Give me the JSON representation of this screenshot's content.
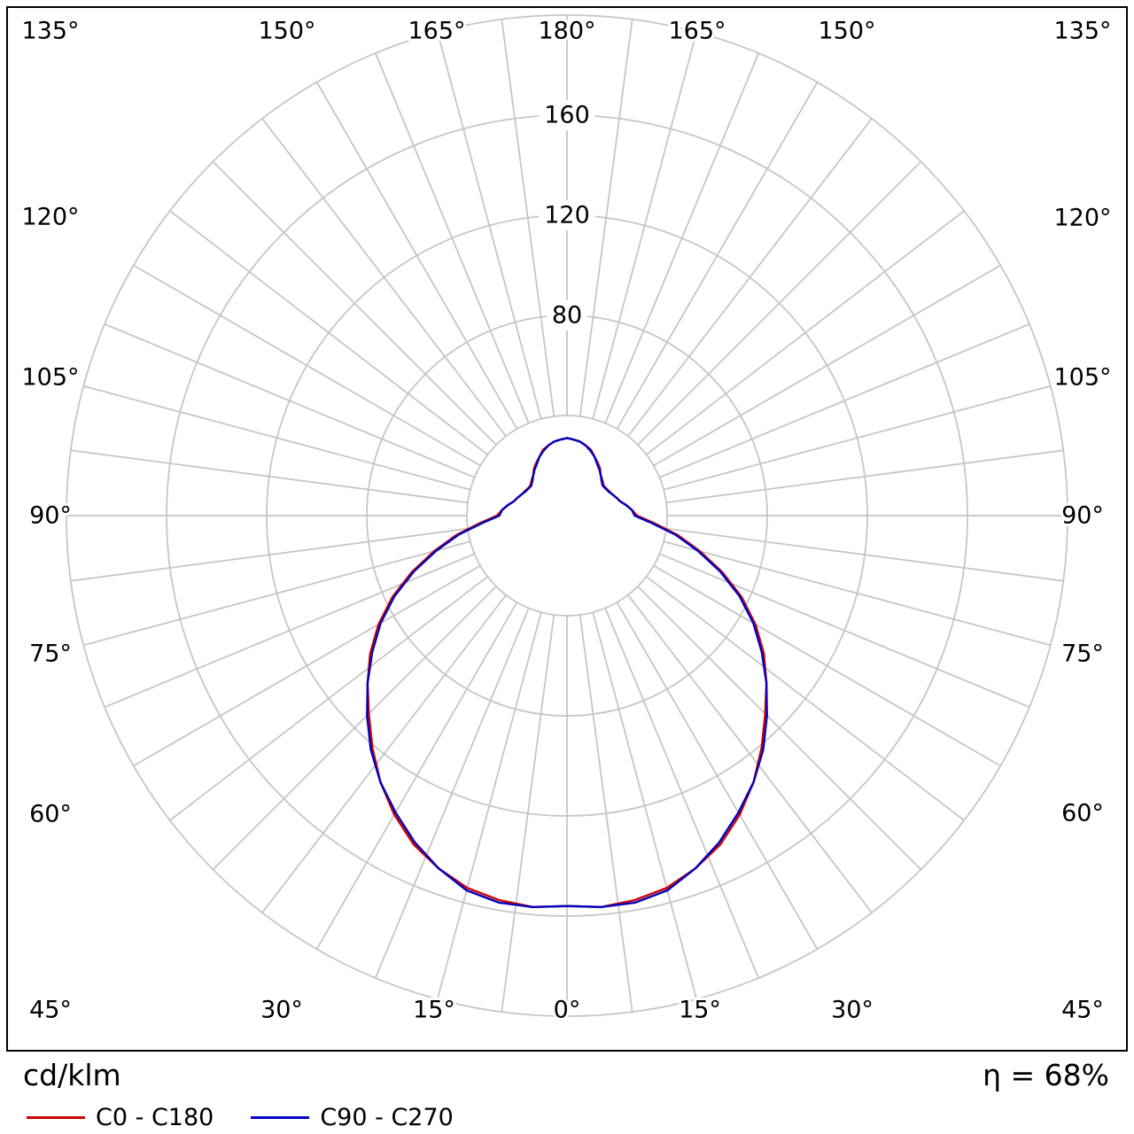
{
  "chart": {
    "unit_label": "cd/klm",
    "efficiency_label": "η = 68%",
    "grid_color": "#c6c6c6",
    "frame_color": "#000000",
    "legend": [
      {
        "label": "C0 - C180",
        "color": "#d00000"
      },
      {
        "label": "C90 - C270",
        "color": "#0000c0"
      }
    ]
  },
  "chart_data": {
    "type": "polar",
    "units": "cd/klm",
    "efficiency": "68%",
    "angle_convention": "gamma 0 deg at bottom (nadir), 180 deg at top (zenith), mirrored left/right",
    "ring_values": [
      40,
      80,
      120,
      160,
      200
    ],
    "ring_labels": [
      80,
      120,
      160
    ],
    "spoke_step_deg": 7.5,
    "angle_label_step_deg": 15,
    "angle_labels": [
      "0°",
      "15°",
      "30°",
      "45°",
      "60°",
      "75°",
      "90°",
      "105°",
      "120°",
      "135°",
      "150°",
      "165°",
      "180°"
    ],
    "gamma_deg": [
      0,
      5,
      10,
      15,
      20,
      25,
      30,
      35,
      40,
      45,
      50,
      55,
      60,
      65,
      70,
      75,
      80,
      85,
      90,
      95,
      100,
      105,
      110,
      115,
      120,
      125,
      130,
      135,
      140,
      145,
      150,
      155,
      160,
      165,
      170,
      175,
      180
    ],
    "series": [
      {
        "name": "C0 - C180",
        "color": "#d00000",
        "values": [
          156,
          157,
          156,
          154,
          150,
          145,
          138,
          130,
          121,
          112,
          104,
          96,
          87,
          77,
          66,
          55,
          45,
          35,
          28,
          26,
          24,
          22,
          21,
          20,
          19.5,
          19,
          19,
          20,
          21,
          23,
          24.5,
          26,
          28,
          29,
          30,
          30.5,
          31
        ]
      },
      {
        "name": "C90 - C270",
        "color": "#0000c0",
        "values": [
          156,
          157,
          157,
          155,
          150,
          144,
          137,
          130,
          122,
          113,
          104,
          95,
          86,
          76,
          65,
          54,
          44,
          34,
          27,
          26,
          24,
          22,
          21,
          20,
          19.2,
          18.8,
          18.6,
          19.5,
          21,
          22.5,
          24,
          26,
          27.5,
          29,
          30,
          30.5,
          31
        ]
      }
    ]
  }
}
